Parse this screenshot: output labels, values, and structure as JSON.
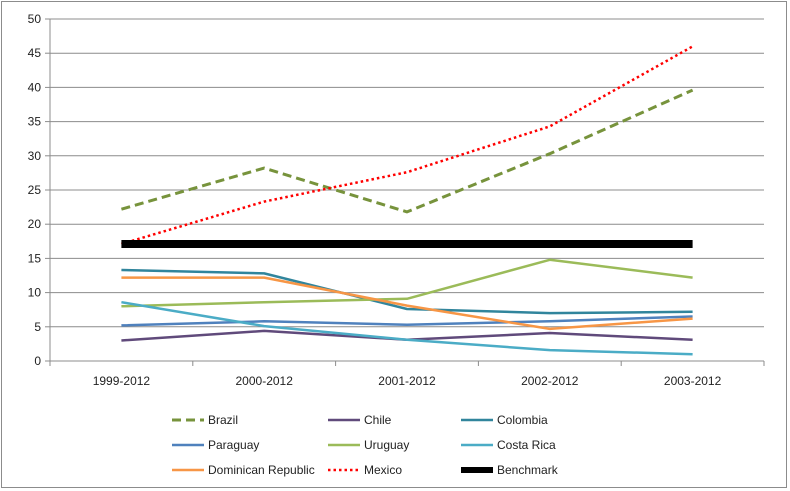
{
  "chart_data": {
    "type": "line",
    "categories": [
      "1999-2012",
      "2000-2012",
      "2001-2012",
      "2002-2012",
      "2003-2012"
    ],
    "ylim": [
      0,
      50
    ],
    "yticks": [
      "0",
      "5",
      "10",
      "15",
      "20",
      "25",
      "30",
      "35",
      "40",
      "45",
      "50"
    ],
    "grid": "horizontal",
    "legend_position": "bottom",
    "series": [
      {
        "name": "Brazil",
        "values": [
          22.2,
          28.2,
          21.8,
          30.3,
          39.6
        ],
        "color": "#77933c",
        "dash": "dashed"
      },
      {
        "name": "Chile",
        "values": [
          3.0,
          4.4,
          3.1,
          4.1,
          3.1
        ],
        "color": "#604a7b",
        "dash": "solid"
      },
      {
        "name": "Colombia",
        "values": [
          13.3,
          12.8,
          7.6,
          7.0,
          7.2
        ],
        "color": "#31859c",
        "dash": "solid"
      },
      {
        "name": "Paraguay",
        "values": [
          5.2,
          5.8,
          5.3,
          5.8,
          6.5
        ],
        "color": "#4f81bd",
        "dash": "solid"
      },
      {
        "name": "Uruguay",
        "values": [
          8.0,
          8.6,
          9.1,
          14.8,
          12.2
        ],
        "color": "#9bbb59",
        "dash": "solid"
      },
      {
        "name": "Costa Rica",
        "values": [
          8.6,
          5.1,
          3.1,
          1.6,
          1.0
        ],
        "color": "#4bacc6",
        "dash": "solid"
      },
      {
        "name": "Dominican Republic",
        "values": [
          12.2,
          12.2,
          8.1,
          4.7,
          6.2
        ],
        "color": "#f79646",
        "dash": "solid"
      },
      {
        "name": "Mexico",
        "values": [
          17.1,
          23.3,
          27.6,
          34.3,
          46.0
        ],
        "color": "#ff0000",
        "dash": "dotted"
      },
      {
        "name": "Benchmark",
        "values": [
          17.1,
          17.1,
          17.1,
          17.1,
          17.1
        ],
        "color": "#000000",
        "dash": "solid"
      }
    ]
  }
}
